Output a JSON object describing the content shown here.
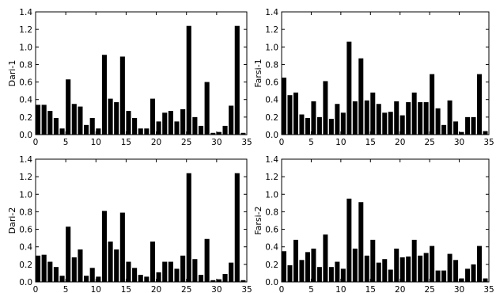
{
  "chart_data": [
    {
      "type": "bar",
      "ylabel": "Dari-1",
      "xlim": [
        0,
        35
      ],
      "ylim": [
        0,
        1.4
      ],
      "xticks": [
        "0",
        "5",
        "10",
        "15",
        "20",
        "25",
        "30",
        "35"
      ],
      "yticks": [
        "0.0",
        "0.2",
        "0.4",
        "0.6",
        "0.8",
        "1.0",
        "1.2",
        "1.4"
      ],
      "x": [
        0,
        1,
        2,
        3,
        4,
        5,
        6,
        7,
        8,
        9,
        10,
        11,
        12,
        13,
        14,
        15,
        16,
        17,
        18,
        19,
        20,
        21,
        22,
        23,
        24,
        25,
        26,
        27,
        28,
        29,
        30,
        31,
        32,
        33,
        34
      ],
      "values": [
        0.34,
        0.34,
        0.27,
        0.19,
        0.07,
        0.63,
        0.35,
        0.32,
        0.11,
        0.19,
        0.07,
        0.91,
        0.41,
        0.37,
        0.89,
        0.27,
        0.19,
        0.07,
        0.07,
        0.41,
        0.15,
        0.25,
        0.27,
        0.15,
        0.29,
        1.24,
        0.2,
        0.1,
        0.6,
        0.02,
        0.03,
        0.1,
        0.33,
        1.24,
        0.02
      ]
    },
    {
      "type": "bar",
      "ylabel": "Farsi-1",
      "xlim": [
        0,
        35
      ],
      "ylim": [
        0,
        1.4
      ],
      "xticks": [
        "0",
        "5",
        "10",
        "15",
        "20",
        "25",
        "30",
        "35"
      ],
      "yticks": [
        "0.0",
        "0.2",
        "0.4",
        "0.6",
        "0.8",
        "1.0",
        "1.2",
        "1.4"
      ],
      "x": [
        0,
        1,
        2,
        3,
        4,
        5,
        6,
        7,
        8,
        9,
        10,
        11,
        12,
        13,
        14,
        15,
        16,
        17,
        18,
        19,
        20,
        21,
        22,
        23,
        24,
        25,
        26,
        27,
        28,
        29,
        30,
        31,
        32,
        33,
        34
      ],
      "values": [
        0.65,
        0.45,
        0.48,
        0.23,
        0.19,
        0.38,
        0.2,
        0.61,
        0.18,
        0.35,
        0.25,
        1.06,
        0.38,
        0.87,
        0.39,
        0.48,
        0.35,
        0.25,
        0.26,
        0.38,
        0.22,
        0.37,
        0.48,
        0.37,
        0.37,
        0.69,
        0.3,
        0.11,
        0.39,
        0.15,
        0.03,
        0.2,
        0.2,
        0.69,
        0.04
      ]
    },
    {
      "type": "bar",
      "ylabel": "Dari-2",
      "xlim": [
        0,
        35
      ],
      "ylim": [
        0,
        1.4
      ],
      "xticks": [
        "0",
        "5",
        "10",
        "15",
        "20",
        "25",
        "30",
        "35"
      ],
      "yticks": [
        "0.0",
        "0.2",
        "0.4",
        "0.6",
        "0.8",
        "1.0",
        "1.2",
        "1.4"
      ],
      "x": [
        0,
        1,
        2,
        3,
        4,
        5,
        6,
        7,
        8,
        9,
        10,
        11,
        12,
        13,
        14,
        15,
        16,
        17,
        18,
        19,
        20,
        21,
        22,
        23,
        24,
        25,
        26,
        27,
        28,
        29,
        30,
        31,
        32,
        33,
        34
      ],
      "values": [
        0.3,
        0.31,
        0.23,
        0.17,
        0.07,
        0.63,
        0.28,
        0.37,
        0.07,
        0.16,
        0.06,
        0.81,
        0.46,
        0.37,
        0.79,
        0.23,
        0.16,
        0.08,
        0.06,
        0.46,
        0.11,
        0.23,
        0.23,
        0.15,
        0.3,
        1.24,
        0.26,
        0.08,
        0.49,
        0.02,
        0.03,
        0.09,
        0.22,
        1.24,
        0.02
      ]
    },
    {
      "type": "bar",
      "ylabel": "Farsi-2",
      "xlim": [
        0,
        35
      ],
      "ylim": [
        0,
        1.4
      ],
      "xticks": [
        "0",
        "5",
        "10",
        "15",
        "20",
        "25",
        "30",
        "35"
      ],
      "yticks": [
        "0.0",
        "0.2",
        "0.4",
        "0.6",
        "0.8",
        "1.0",
        "1.2",
        "1.4"
      ],
      "x": [
        0,
        1,
        2,
        3,
        4,
        5,
        6,
        7,
        8,
        9,
        10,
        11,
        12,
        13,
        14,
        15,
        16,
        17,
        18,
        19,
        20,
        21,
        22,
        23,
        24,
        25,
        26,
        27,
        28,
        29,
        30,
        31,
        32,
        33,
        34
      ],
      "values": [
        0.35,
        0.19,
        0.48,
        0.25,
        0.34,
        0.38,
        0.17,
        0.54,
        0.17,
        0.23,
        0.15,
        0.95,
        0.38,
        0.91,
        0.3,
        0.48,
        0.22,
        0.26,
        0.14,
        0.38,
        0.28,
        0.29,
        0.48,
        0.3,
        0.33,
        0.41,
        0.13,
        0.13,
        0.32,
        0.25,
        0.04,
        0.15,
        0.2,
        0.41,
        0.04
      ]
    }
  ]
}
